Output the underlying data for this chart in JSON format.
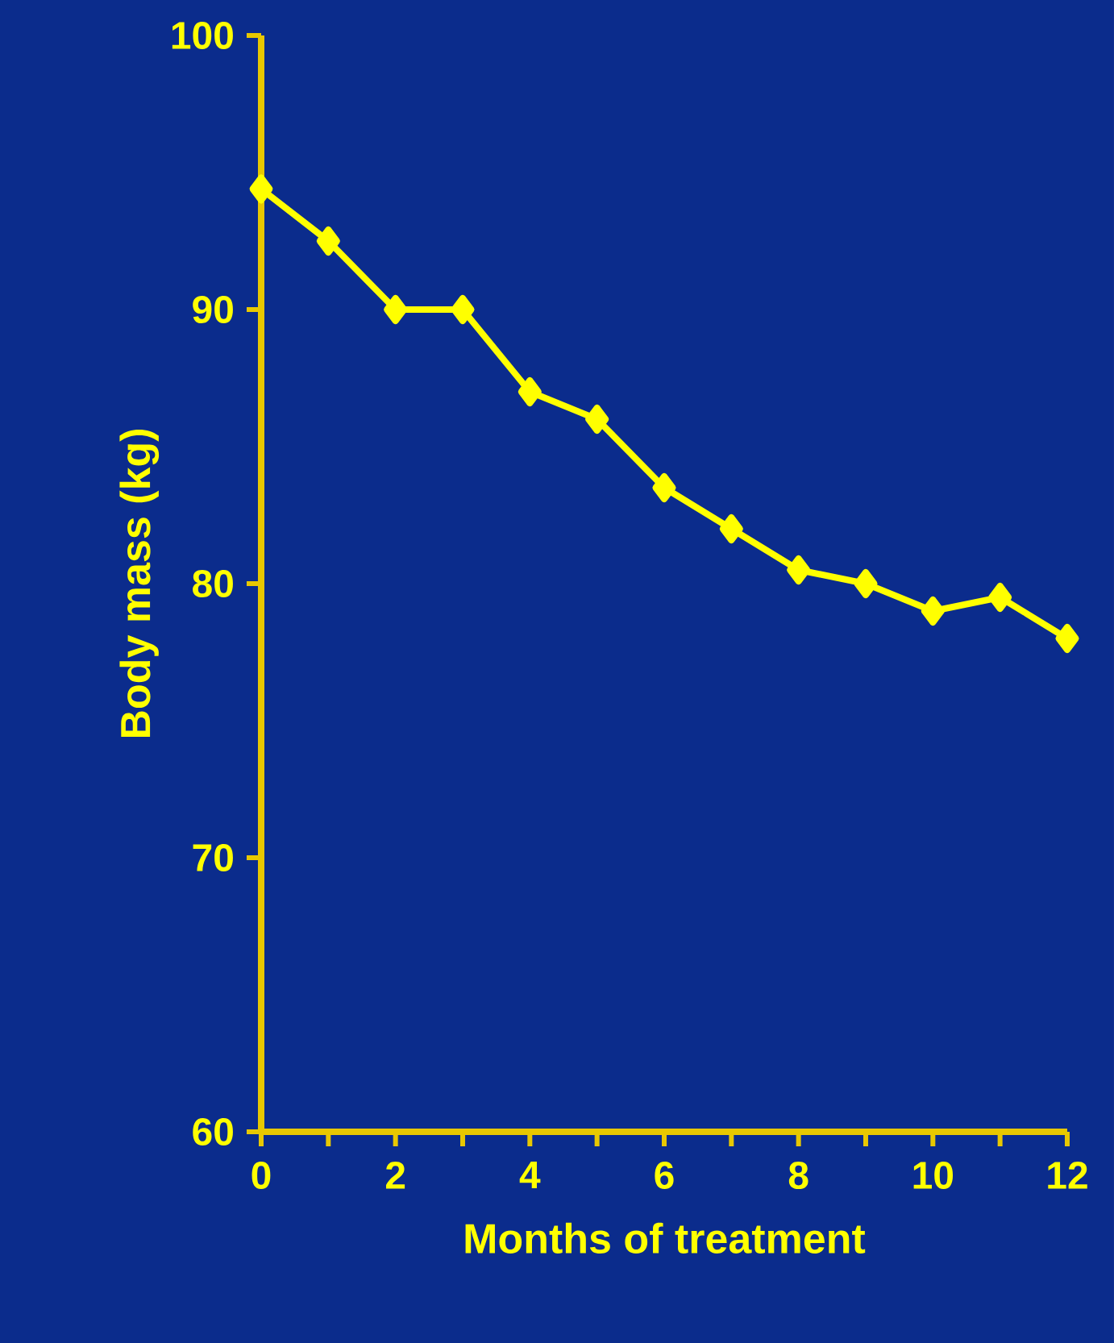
{
  "chart_data": {
    "type": "line",
    "xlabel": "Months of treatment",
    "ylabel": "Body mass (kg)",
    "x": [
      0,
      1,
      2,
      3,
      4,
      5,
      6,
      7,
      8,
      9,
      10,
      11,
      12
    ],
    "values": [
      94.4,
      92.5,
      90,
      90,
      87,
      86,
      83.5,
      82,
      80.5,
      80,
      79,
      79.5,
      78
    ],
    "color": "#ffff00",
    "marker": "diamond",
    "line_style": "solid",
    "xlim": [
      0,
      12
    ],
    "ylim": [
      60,
      100
    ],
    "xticks": [
      0,
      {
        "value": 1,
        "label": null
      },
      2,
      {
        "value": 3,
        "label": null
      },
      4,
      {
        "value": 5,
        "label": null
      },
      6,
      {
        "value": 7,
        "label": null
      },
      8,
      {
        "value": 9,
        "label": null
      },
      10,
      {
        "value": 11,
        "label": null
      },
      12
    ],
    "yticks": [
      60,
      70,
      80,
      90,
      100
    ]
  }
}
